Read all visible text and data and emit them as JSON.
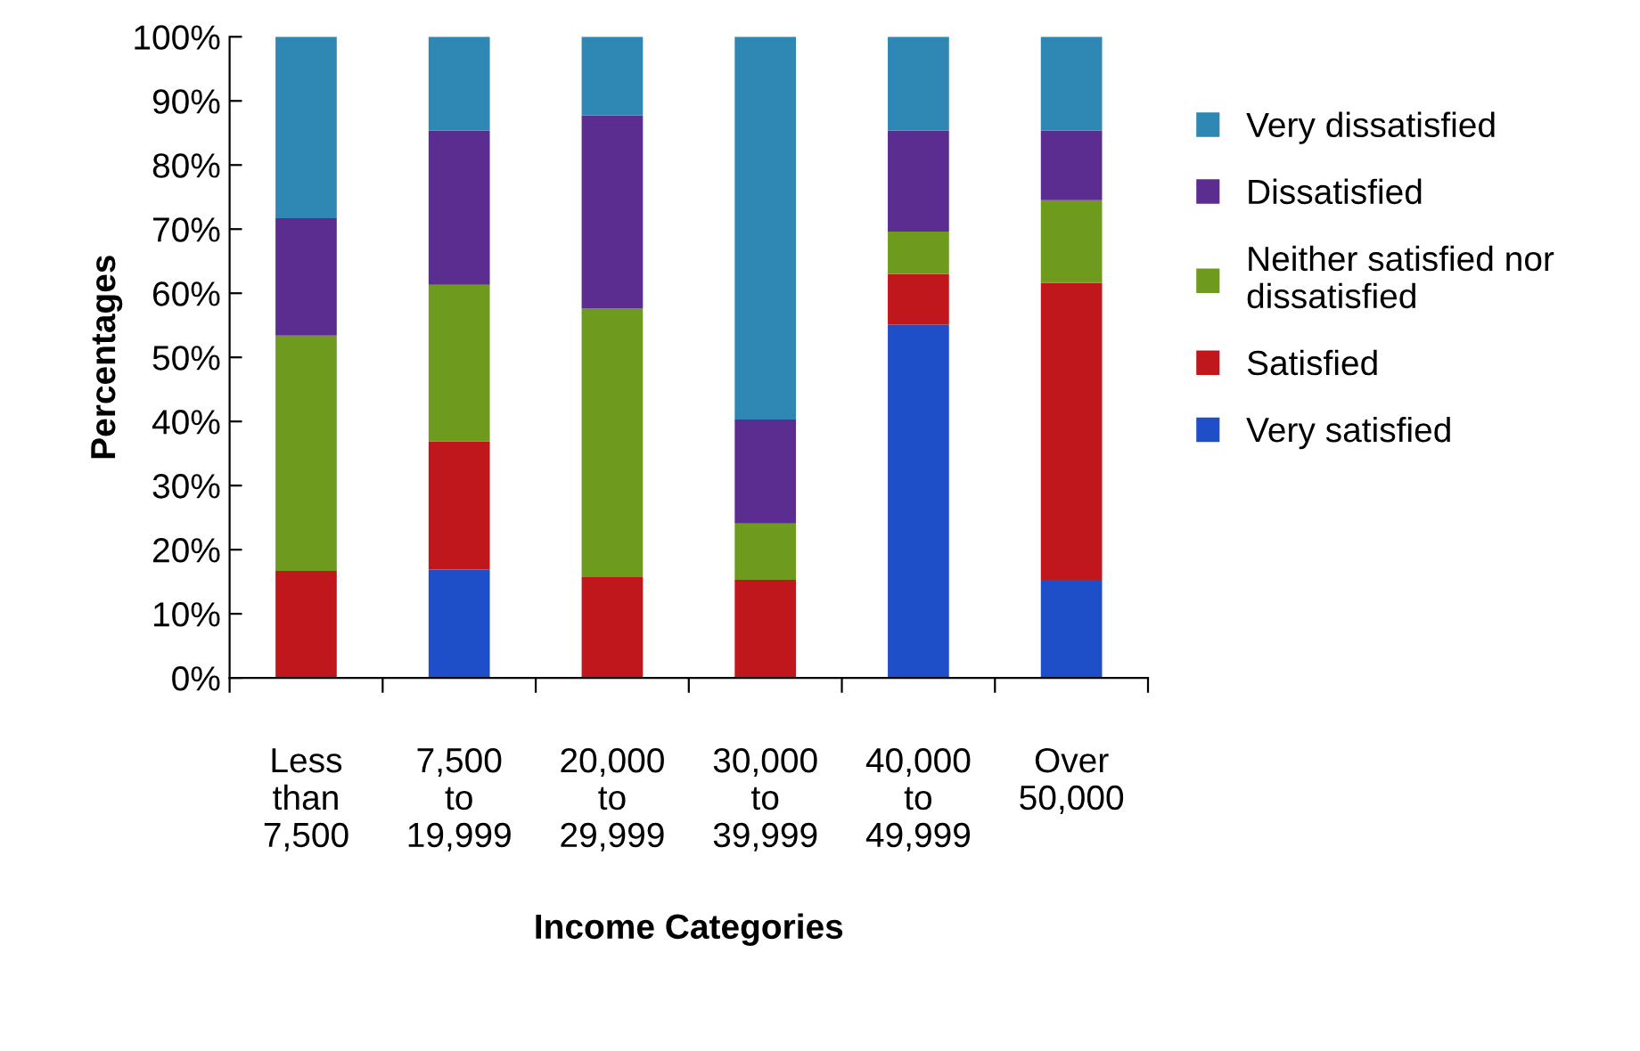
{
  "chart_data": {
    "type": "bar",
    "stacked": true,
    "xlabel": "Income Categories",
    "ylabel": "Percentages",
    "categories": [
      "Less\nthan\n7,500",
      "7,500\nto\n19,999",
      "20,000\nto\n29,999",
      "30,000\nto\n39,999",
      "40,000\nto\n49,999",
      "Over\n50,000"
    ],
    "series": [
      {
        "name": "Very satisfied",
        "color": "#1f4fc8",
        "values": [
          0,
          16.9,
          0,
          0,
          55.1,
          15.3
        ]
      },
      {
        "name": "Satisfied",
        "color": "#c0171c",
        "values": [
          16.7,
          20.0,
          15.7,
          15.3,
          7.9,
          46.3
        ]
      },
      {
        "name": "Neither satisfied nor dissatisfied",
        "color": "#6e9a1e",
        "values": [
          36.7,
          24.4,
          41.9,
          8.8,
          6.6,
          12.9
        ]
      },
      {
        "name": "Dissatisfied",
        "color": "#5b2d91",
        "values": [
          18.3,
          24.1,
          30.1,
          16.2,
          15.8,
          10.9
        ]
      },
      {
        "name": "Very dissatisfied",
        "color": "#2f87b3",
        "values": [
          28.3,
          14.6,
          12.3,
          59.7,
          14.6,
          14.6
        ]
      }
    ],
    "ylim": [
      0,
      100
    ],
    "yticks": [
      {
        "value": 0,
        "label": "0%"
      },
      {
        "value": 10,
        "label": "10%"
      },
      {
        "value": 20,
        "label": "20%"
      },
      {
        "value": 30,
        "label": "30%"
      },
      {
        "value": 40,
        "label": "40%"
      },
      {
        "value": 50,
        "label": "50%"
      },
      {
        "value": 60,
        "label": "60%"
      },
      {
        "value": 70,
        "label": "70%"
      },
      {
        "value": 80,
        "label": "80%"
      },
      {
        "value": 90,
        "label": "90%"
      },
      {
        "value": 100,
        "label": "100%"
      }
    ],
    "legend": "right",
    "grid": false
  }
}
